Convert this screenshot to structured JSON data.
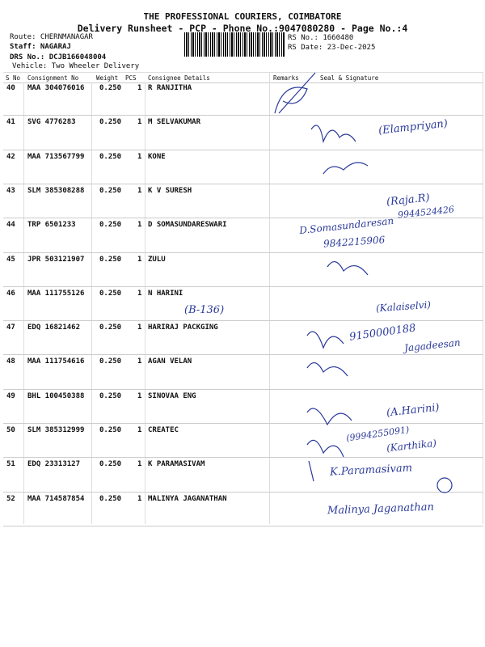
{
  "header": {
    "company": "THE PROFESSIONAL COURIERS, COIMBATORE",
    "subtitle": "Delivery Runsheet - PCP - Phone No.:9047080280 - Page No.:4",
    "route": "Route: CHERNMANAGAR",
    "staff": "Staff: NAGARAJ",
    "drs": "DRS No.: DCJB166048004",
    "vehicle": "Vehicle: Two Wheeler Delivery",
    "rs_no": "RS No.: 1660480",
    "rs_date": "RS Date: 23-Dec-2025"
  },
  "columns": [
    "S No",
    "Consignment No",
    "Weight",
    "PCS",
    "Consignee Details",
    "Remarks",
    "Seal & Signature"
  ],
  "rows": [
    [
      "40",
      "MAA 304076016",
      "0.250",
      "1",
      "R RANJITHA"
    ],
    [
      "41",
      "SVG 4776283",
      "0.250",
      "1",
      "M SELVAKUMAR"
    ],
    [
      "42",
      "MAA 713567799",
      "0.250",
      "1",
      "KONE"
    ],
    [
      "43",
      "SLM 385308288",
      "0.250",
      "1",
      "K V SURESH"
    ],
    [
      "44",
      "TRP 6501233",
      "0.250",
      "1",
      "D SOMASUNDARESWARI"
    ],
    [
      "45",
      "JPR 503121907",
      "0.250",
      "1",
      "ZULU"
    ],
    [
      "46",
      "MAA 111755126",
      "0.250",
      "1",
      "N HARINI"
    ],
    [
      "47",
      "EDQ 16821462",
      "0.250",
      "1",
      "HARIRAJ PACKGING"
    ],
    [
      "48",
      "MAA 111754616",
      "0.250",
      "1",
      "AGAN VELAN"
    ],
    [
      "49",
      "BHL 100450388",
      "0.250",
      "1",
      "SINOVAA ENG"
    ],
    [
      "50",
      "SLM 385312999",
      "0.250",
      "1",
      "CREATEC"
    ],
    [
      "51",
      "EDQ 23313127",
      "0.250",
      "1",
      "K PARAMASIVAM"
    ],
    [
      "52",
      "MAA 714587854",
      "0.250",
      "1",
      "MALINYA JAGANATHAN"
    ]
  ],
  "handwriting": [
    "(Elampriyan)",
    "(Raja.R)",
    "9944524426",
    "D.Somasundaresan",
    "9842215906",
    "(B-136)",
    "(Kalaiselvi)",
    "9150000188",
    "Jagadeesan",
    "(A.Harini)",
    "(9994255091)",
    "(Karthika)",
    "K.Paramasivam",
    "Malinya Jaganathan"
  ],
  "ink_color": "#2a3a9a"
}
